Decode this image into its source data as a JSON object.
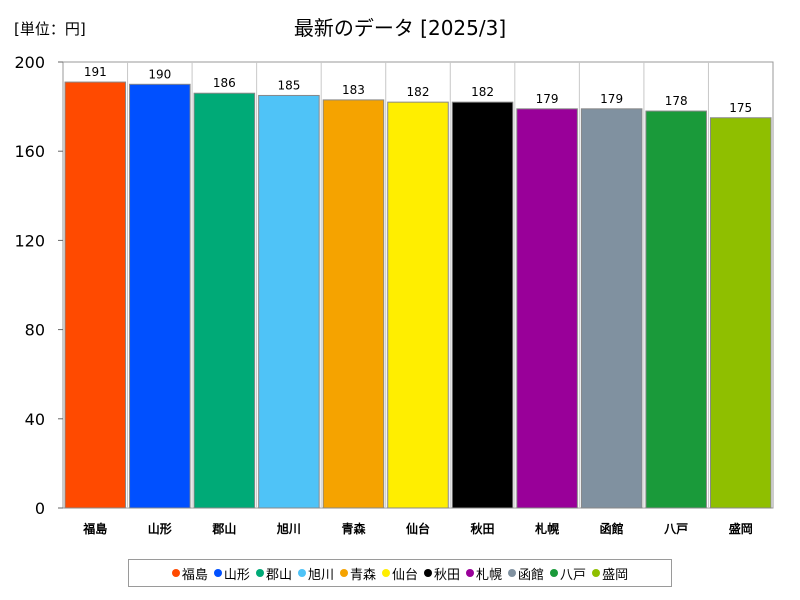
{
  "header": {
    "unit": "[単位：円]",
    "title": "最新のデータ [2025/3]"
  },
  "chart_data": {
    "type": "bar",
    "title": "最新のデータ [2025/3]",
    "unit_label": "[単位：円]",
    "xlabel": "",
    "ylabel": "",
    "ylim": [
      0,
      200
    ],
    "yticks": [
      0,
      40,
      80,
      120,
      160,
      200
    ],
    "grid": false,
    "legend_position": "bottom",
    "categories": [
      "福島",
      "山形",
      "郡山",
      "旭川",
      "青森",
      "仙台",
      "秋田",
      "札幌",
      "函館",
      "八戸",
      "盛岡"
    ],
    "values": [
      191,
      190,
      186,
      185,
      183,
      182,
      182,
      179,
      179,
      178,
      175
    ],
    "colors": [
      "#ff4a00",
      "#0050ff",
      "#00aa77",
      "#4fc3f7",
      "#f5a300",
      "#ffee00",
      "#000000",
      "#990099",
      "#8091a0",
      "#1a9a3a",
      "#8fbf00"
    ]
  }
}
